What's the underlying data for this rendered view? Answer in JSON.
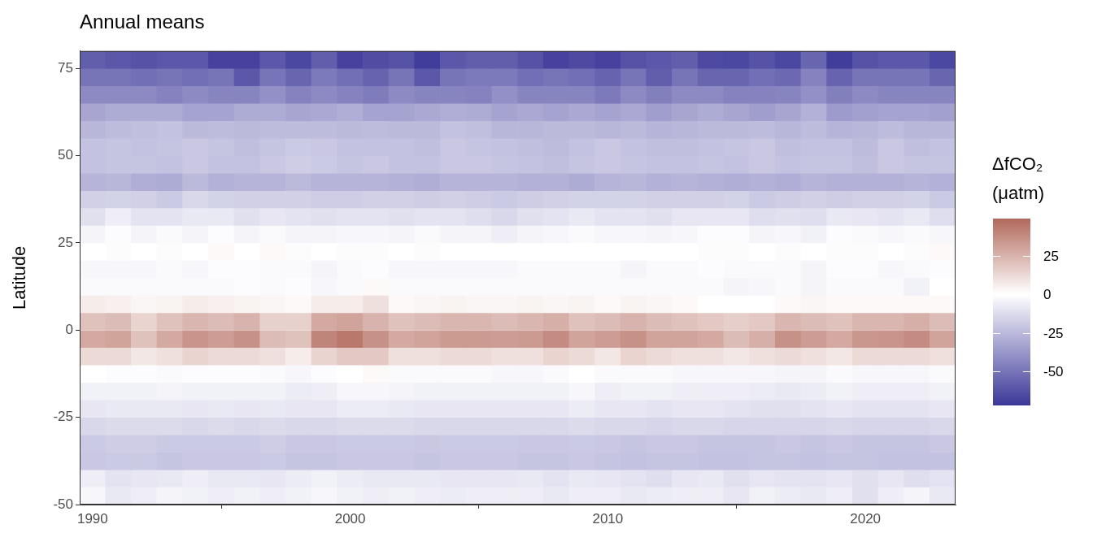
{
  "chart_data": {
    "type": "heatmap",
    "title": "Annual means",
    "ylabel": "Latitude",
    "clabel": "ΔfCO₂ (μatm)",
    "x": [
      1990,
      1991,
      1992,
      1993,
      1994,
      1995,
      1996,
      1997,
      1998,
      1999,
      2000,
      2001,
      2002,
      2003,
      2004,
      2005,
      2006,
      2007,
      2008,
      2009,
      2010,
      2011,
      2012,
      2013,
      2014,
      2015,
      2016,
      2017,
      2018,
      2019,
      2020,
      2021,
      2022,
      2023
    ],
    "y": [
      77.5,
      72.5,
      67.5,
      62.5,
      57.5,
      52.5,
      47.5,
      42.5,
      37.5,
      32.5,
      27.5,
      22.5,
      17.5,
      12.5,
      7.5,
      2.5,
      -2.5,
      -7.5,
      -12.5,
      -17.5,
      -22.5,
      -27.5,
      -32.5,
      -37.5,
      -42.5,
      -47.5
    ],
    "cells": [
      [
        -58,
        -60,
        -62,
        -60,
        -60,
        -68,
        -68,
        -60,
        -66,
        -58,
        -68,
        -64,
        -62,
        -70,
        -60,
        -58,
        -58,
        -62,
        -68,
        -65,
        -68,
        -62,
        -60,
        -58,
        -65,
        -66,
        -62,
        -66,
        -55,
        -70,
        -62,
        -60,
        -60,
        -66
      ],
      [
        -50,
        -50,
        -52,
        -50,
        -52,
        -50,
        -60,
        -50,
        -55,
        -48,
        -52,
        -56,
        -50,
        -60,
        -50,
        -48,
        -48,
        -52,
        -50,
        -52,
        -56,
        -50,
        -58,
        -50,
        -55,
        -55,
        -52,
        -54,
        -45,
        -56,
        -50,
        -50,
        -50,
        -55
      ],
      [
        -42,
        -42,
        -42,
        -45,
        -42,
        -44,
        -44,
        -40,
        -45,
        -42,
        -45,
        -47,
        -42,
        -44,
        -44,
        -45,
        -40,
        -44,
        -44,
        -44,
        -48,
        -42,
        -46,
        -42,
        -42,
        -45,
        -45,
        -44,
        -40,
        -46,
        -42,
        -44,
        -44,
        -44
      ],
      [
        -32,
        -30,
        -30,
        -30,
        -33,
        -33,
        -30,
        -30,
        -32,
        -31,
        -29,
        -33,
        -33,
        -31,
        -29,
        -30,
        -33,
        -31,
        -33,
        -31,
        -33,
        -31,
        -35,
        -32,
        -30,
        -32,
        -35,
        -32,
        -28,
        -36,
        -34,
        -33,
        -33,
        -34
      ],
      [
        -26,
        -24,
        -23,
        -22,
        -25,
        -24,
        -25,
        -24,
        -24,
        -24,
        -25,
        -24,
        -25,
        -25,
        -22,
        -23,
        -26,
        -26,
        -25,
        -25,
        -26,
        -25,
        -27,
        -26,
        -25,
        -25,
        -24,
        -26,
        -24,
        -27,
        -26,
        -24,
        -26,
        -26
      ],
      [
        -22,
        -21,
        -22,
        -21,
        -20,
        -21,
        -23,
        -21,
        -19,
        -20,
        -22,
        -22,
        -22,
        -23,
        -20,
        -21,
        -22,
        -23,
        -24,
        -22,
        -20,
        -22,
        -23,
        -23,
        -22,
        -21,
        -20,
        -23,
        -22,
        -22,
        -24,
        -20,
        -23,
        -22
      ],
      [
        -22,
        -21,
        -21,
        -22,
        -20,
        -22,
        -22,
        -20,
        -18,
        -19,
        -21,
        -20,
        -22,
        -22,
        -20,
        -20,
        -21,
        -22,
        -23,
        -21,
        -20,
        -21,
        -22,
        -22,
        -21,
        -22,
        -20,
        -22,
        -21,
        -21,
        -23,
        -20,
        -21,
        -21
      ],
      [
        -27,
        -26,
        -29,
        -30,
        -25,
        -28,
        -27,
        -27,
        -25,
        -27,
        -27,
        -27,
        -28,
        -29,
        -27,
        -27,
        -27,
        -28,
        -28,
        -30,
        -27,
        -26,
        -28,
        -27,
        -28,
        -29,
        -28,
        -29,
        -27,
        -28,
        -28,
        -28,
        -27,
        -28
      ],
      [
        -17,
        -16,
        -17,
        -19,
        -14,
        -16,
        -17,
        -17,
        -17,
        -18,
        -18,
        -17,
        -17,
        -18,
        -17,
        -18,
        -19,
        -18,
        -17,
        -16,
        -16,
        -16,
        -17,
        -17,
        -17,
        -16,
        -19,
        -18,
        -17,
        -18,
        -17,
        -17,
        -16,
        -19
      ],
      [
        -11,
        -6,
        -10,
        -10,
        -8,
        -8,
        -11,
        -9,
        -10,
        -11,
        -10,
        -10,
        -11,
        -10,
        -10,
        -12,
        -14,
        -11,
        -10,
        -8,
        -10,
        -10,
        -11,
        -9,
        -9,
        -9,
        -12,
        -11,
        -12,
        -8,
        -9,
        -10,
        -8,
        -12
      ],
      [
        -4,
        -1,
        -4,
        -2,
        -4,
        -1,
        -4,
        -2,
        -4,
        -4,
        -3,
        -3,
        -4,
        -2,
        -4,
        -4,
        -6,
        -4,
        -3,
        -2,
        -3,
        -3,
        -4,
        -3,
        -1,
        -1,
        -4,
        -3,
        -5,
        -1,
        -2,
        -3,
        -2,
        -3
      ],
      [
        0,
        1,
        0,
        1,
        0,
        2,
        0,
        2,
        1,
        0,
        1,
        1,
        0,
        1,
        0,
        0,
        0,
        0,
        0,
        0,
        0,
        0,
        0,
        0,
        1,
        1,
        0,
        1,
        0,
        1,
        1,
        0,
        1,
        2
      ],
      [
        -3,
        -3,
        -3,
        -2,
        -3,
        -1,
        -1,
        -2,
        -2,
        -4,
        -2,
        -1,
        -3,
        -3,
        -3,
        -3,
        -3,
        -2,
        -2,
        -2,
        -2,
        -4,
        -2,
        -2,
        -1,
        -2,
        -2,
        -2,
        -4,
        -1,
        -1,
        -3,
        -2,
        -1
      ],
      [
        -2,
        -2,
        -2,
        -2,
        -2,
        -2,
        -1,
        -2,
        -1,
        -3,
        -2,
        2,
        -2,
        -2,
        -2,
        -2,
        -2,
        -2,
        -2,
        -2,
        -2,
        -2,
        -2,
        -2,
        -2,
        -4,
        -3,
        -2,
        -4,
        -2,
        -2,
        -2,
        -5,
        0
      ],
      [
        6,
        5,
        3,
        4,
        6,
        5,
        4,
        3,
        2,
        6,
        6,
        10,
        2,
        3,
        4,
        3,
        3,
        4,
        3,
        4,
        2,
        4,
        3,
        2,
        0,
        0,
        0,
        2,
        3,
        2,
        2,
        2,
        2,
        2
      ],
      [
        20,
        22,
        14,
        20,
        24,
        22,
        25,
        15,
        15,
        28,
        30,
        25,
        20,
        22,
        24,
        24,
        22,
        24,
        26,
        20,
        22,
        25,
        22,
        20,
        18,
        16,
        18,
        24,
        22,
        20,
        24,
        24,
        26,
        22
      ],
      [
        28,
        30,
        20,
        28,
        35,
        32,
        36,
        22,
        20,
        40,
        44,
        36,
        28,
        30,
        33,
        33,
        32,
        33,
        38,
        30,
        32,
        36,
        30,
        30,
        28,
        22,
        26,
        36,
        32,
        28,
        34,
        35,
        38,
        30
      ],
      [
        12,
        12,
        8,
        10,
        14,
        12,
        12,
        10,
        6,
        14,
        18,
        18,
        10,
        10,
        12,
        12,
        10,
        10,
        14,
        12,
        8,
        14,
        12,
        10,
        10,
        8,
        10,
        12,
        10,
        8,
        12,
        12,
        12,
        10
      ],
      [
        0,
        -1,
        -1,
        -2,
        -1,
        -1,
        -1,
        -2,
        -3,
        -1,
        0,
        2,
        -2,
        -2,
        -2,
        -2,
        -3,
        -3,
        -2,
        0,
        -2,
        -2,
        -2,
        -3,
        -3,
        -3,
        -3,
        -4,
        -4,
        -2,
        -3,
        -3,
        -3,
        -2
      ],
      [
        -5,
        -5,
        -5,
        -4,
        -5,
        -5,
        -5,
        -5,
        -7,
        -6,
        -3,
        -3,
        -4,
        -5,
        -5,
        -5,
        -5,
        -5,
        -5,
        -3,
        -6,
        -5,
        -5,
        -6,
        -6,
        -6,
        -7,
        -8,
        -7,
        -5,
        -6,
        -6,
        -6,
        -5
      ],
      [
        -9,
        -8,
        -8,
        -8,
        -9,
        -8,
        -9,
        -8,
        -9,
        -9,
        -7,
        -7,
        -8,
        -9,
        -9,
        -9,
        -9,
        -9,
        -9,
        -7,
        -9,
        -9,
        -10,
        -9,
        -9,
        -10,
        -11,
        -11,
        -10,
        -9,
        -10,
        -10,
        -10,
        -9
      ],
      [
        -14,
        -13,
        -13,
        -13,
        -14,
        -13,
        -14,
        -13,
        -14,
        -14,
        -13,
        -13,
        -13,
        -14,
        -14,
        -14,
        -14,
        -14,
        -14,
        -13,
        -14,
        -14,
        -15,
        -14,
        -14,
        -15,
        -15,
        -15,
        -15,
        -14,
        -15,
        -15,
        -15,
        -14
      ],
      [
        -19,
        -18,
        -18,
        -19,
        -19,
        -19,
        -19,
        -18,
        -20,
        -20,
        -19,
        -19,
        -19,
        -20,
        -19,
        -19,
        -19,
        -20,
        -20,
        -19,
        -20,
        -21,
        -20,
        -20,
        -21,
        -21,
        -21,
        -20,
        -21,
        -20,
        -21,
        -21,
        -21,
        -20
      ],
      [
        -20,
        -19,
        -19,
        -21,
        -20,
        -20,
        -20,
        -19,
        -21,
        -21,
        -20,
        -20,
        -20,
        -21,
        -20,
        -20,
        -20,
        -21,
        -21,
        -20,
        -21,
        -22,
        -21,
        -21,
        -22,
        -22,
        -21,
        -21,
        -22,
        -21,
        -21,
        -22,
        -22,
        -22
      ],
      [
        -6,
        -10,
        -9,
        -8,
        -6,
        -8,
        -8,
        -9,
        -7,
        -5,
        -7,
        -8,
        -8,
        -8,
        -9,
        -9,
        -9,
        -8,
        -10,
        -8,
        -9,
        -10,
        -12,
        -9,
        -8,
        -11,
        -9,
        -10,
        -10,
        -9,
        -11,
        -9,
        -12,
        -10
      ],
      [
        -3,
        -8,
        -6,
        -4,
        -5,
        -6,
        -5,
        -6,
        -5,
        -3,
        -5,
        -6,
        -5,
        -6,
        -7,
        -6,
        -6,
        -6,
        -8,
        -6,
        -6,
        -8,
        -7,
        -6,
        -6,
        -9,
        -5,
        -7,
        -8,
        -6,
        -11,
        -6,
        -4,
        -8
      ]
    ],
    "xlim": [
      1989.5,
      2023.5
    ],
    "xticks": [
      1990,
      2000,
      2010,
      2020
    ],
    "ylim": [
      -50,
      80
    ],
    "yticks": [
      -50,
      -25,
      0,
      25,
      50,
      75
    ],
    "clim": [
      -72,
      49
    ],
    "cticks": [
      -50,
      -25,
      0,
      25
    ]
  }
}
